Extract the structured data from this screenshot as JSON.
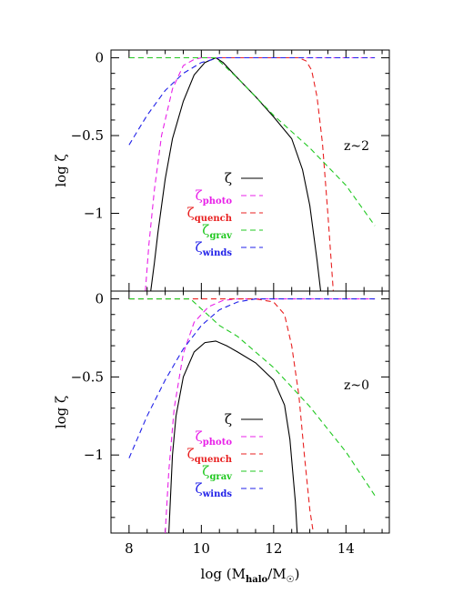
{
  "chart_data": [
    {
      "type": "line",
      "annotation": "z~2",
      "ylabel": "log ζ",
      "xlim": [
        7.5,
        15.2
      ],
      "ylim": [
        -1.5,
        0.05
      ],
      "yticks": [
        0,
        -0.5,
        -1
      ],
      "ytick_labels": [
        "0",
        "−0.5",
        "−1"
      ],
      "series": [
        {
          "name": "ζ",
          "color": "#000000",
          "dash": "solid",
          "x": [
            8.6,
            8.7,
            8.8,
            9.0,
            9.2,
            9.5,
            9.8,
            10.1,
            10.4,
            10.6,
            11.0,
            11.5,
            12.0,
            12.5,
            12.8,
            13.0,
            13.2,
            13.3
          ],
          "y": [
            -1.5,
            -1.32,
            -1.12,
            -0.78,
            -0.52,
            -0.28,
            -0.11,
            -0.03,
            0.0,
            -0.03,
            -0.13,
            -0.25,
            -0.38,
            -0.52,
            -0.72,
            -0.95,
            -1.3,
            -1.5
          ]
        },
        {
          "name": "ζphoto",
          "label_main": "ζ",
          "label_sub": "photo",
          "color": "#e820e8",
          "dash": "dashed",
          "x": [
            8.45,
            8.55,
            8.7,
            8.9,
            9.2,
            9.5,
            9.8,
            10.0,
            10.5,
            11.0,
            12.0,
            13.0,
            14.0,
            14.8
          ],
          "y": [
            -1.5,
            -1.2,
            -0.85,
            -0.5,
            -0.2,
            -0.05,
            -0.01,
            0.0,
            0.0,
            0.0,
            0.0,
            0.0,
            0.0,
            0.0
          ]
        },
        {
          "name": "ζquench",
          "label_main": "ζ",
          "label_sub": "quench",
          "color": "#e82020",
          "dash": "dashed",
          "x": [
            8.0,
            10.0,
            12.0,
            12.7,
            12.9,
            13.05,
            13.2,
            13.35,
            13.5,
            13.65
          ],
          "y": [
            0.0,
            0.0,
            0.0,
            0.0,
            -0.02,
            -0.08,
            -0.25,
            -0.55,
            -1.0,
            -1.5
          ]
        },
        {
          "name": "ζgrav",
          "label_main": "ζ",
          "label_sub": "grav",
          "color": "#20c820",
          "dash": "dashed",
          "x": [
            8.0,
            9.0,
            10.4,
            11.0,
            12.0,
            13.0,
            14.0,
            14.8
          ],
          "y": [
            0.0,
            0.0,
            0.0,
            -0.13,
            -0.37,
            -0.58,
            -0.82,
            -1.08
          ]
        },
        {
          "name": "ζwinds",
          "label_main": "ζ",
          "label_sub": "winds",
          "color": "#2020e8",
          "dash": "dashed",
          "x": [
            8.0,
            8.5,
            9.0,
            9.5,
            10.0,
            10.5,
            11.0,
            12.0,
            14.8
          ],
          "y": [
            -0.56,
            -0.37,
            -0.21,
            -0.1,
            -0.03,
            0.0,
            0.0,
            0.0,
            0.0
          ]
        }
      ]
    },
    {
      "type": "line",
      "annotation": "z~0",
      "xlabel_main": "log (M",
      "xlabel_sub": "halo",
      "xlabel_mid": "/M",
      "xlabel_sym": "☉",
      "xlabel_end": ")",
      "ylabel": "log ζ",
      "xlim": [
        7.5,
        15.2
      ],
      "ylim": [
        -1.5,
        0.05
      ],
      "xticks": [
        8,
        10,
        12,
        14
      ],
      "xtick_labels": [
        "8",
        "10",
        "12",
        "14"
      ],
      "yticks": [
        0,
        -0.5,
        -1
      ],
      "ytick_labels": [
        "0",
        "−0.5",
        "−1"
      ],
      "series": [
        {
          "name": "ζ",
          "color": "#000000",
          "dash": "solid",
          "x": [
            9.1,
            9.2,
            9.3,
            9.5,
            9.8,
            10.1,
            10.4,
            10.7,
            11.0,
            11.5,
            12.0,
            12.3,
            12.45,
            12.6,
            12.65
          ],
          "y": [
            -1.5,
            -1.0,
            -0.75,
            -0.5,
            -0.34,
            -0.28,
            -0.27,
            -0.3,
            -0.34,
            -0.41,
            -0.52,
            -0.68,
            -0.9,
            -1.3,
            -1.5
          ]
        },
        {
          "name": "ζphoto",
          "label_main": "ζ",
          "label_sub": "photo",
          "color": "#e820e8",
          "dash": "dashed",
          "x": [
            9.0,
            9.1,
            9.25,
            9.5,
            9.8,
            10.2,
            10.6,
            11.0,
            12.0,
            13.0,
            14.8
          ],
          "y": [
            -1.5,
            -1.1,
            -0.7,
            -0.35,
            -0.15,
            -0.05,
            -0.01,
            0.0,
            0.0,
            0.0,
            0.0
          ]
        },
        {
          "name": "ζquench",
          "label_main": "ζ",
          "label_sub": "quench",
          "color": "#e82020",
          "dash": "dashed",
          "x": [
            8.0,
            10.0,
            11.5,
            12.0,
            12.3,
            12.5,
            12.7,
            12.85,
            13.0,
            13.1
          ],
          "y": [
            0.0,
            0.0,
            0.0,
            -0.02,
            -0.1,
            -0.3,
            -0.62,
            -1.0,
            -1.35,
            -1.5
          ]
        },
        {
          "name": "ζgrav",
          "label_main": "ζ",
          "label_sub": "grav",
          "color": "#20c820",
          "dash": "dashed",
          "x": [
            8.0,
            9.0,
            9.7,
            10.5,
            11.0,
            12.0,
            13.0,
            14.0,
            14.8
          ],
          "y": [
            0.0,
            0.0,
            0.0,
            -0.17,
            -0.24,
            -0.44,
            -0.69,
            -0.98,
            -1.26
          ]
        },
        {
          "name": "ζwinds",
          "label_main": "ζ",
          "label_sub": "winds",
          "color": "#2020e8",
          "dash": "dashed",
          "x": [
            8.0,
            8.5,
            9.0,
            9.5,
            10.0,
            10.5,
            11.0,
            11.5,
            12.0,
            14.8
          ],
          "y": [
            -1.02,
            -0.75,
            -0.52,
            -0.32,
            -0.17,
            -0.07,
            -0.02,
            0.0,
            0.0,
            0.0
          ]
        }
      ]
    }
  ]
}
